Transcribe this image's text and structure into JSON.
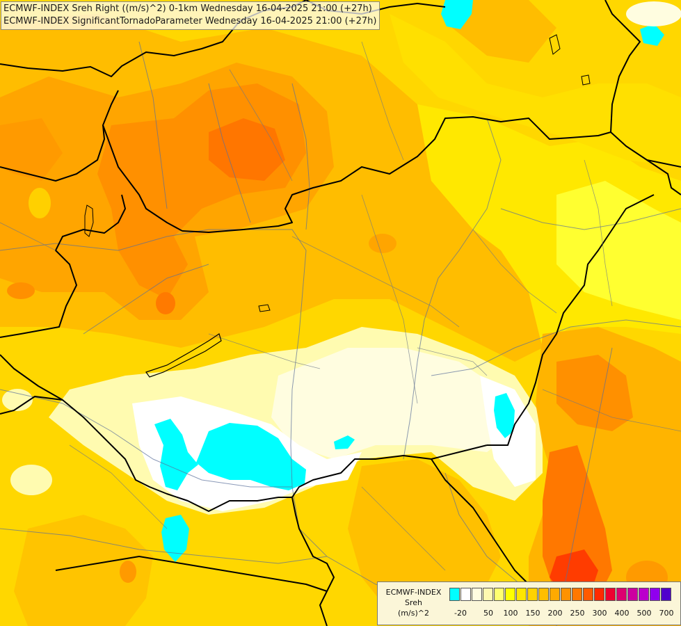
{
  "title_lines": [
    "ECMWF-INDEX Sreh Right ((m/s)^2) 0-1km Wednesday 16-04-2025 21:00 (+27h)",
    "ECMWF-INDEX SignificantTornadoParameter Wednesday 16-04-2025 21:00 (+27h)"
  ],
  "legend": {
    "title": "ECMWF-INDEX",
    "subtitle": "Sreh",
    "unit": "(m/s)^2",
    "colors": [
      "#00ffff",
      "#ffffff",
      "#fffde0",
      "#fff9b0",
      "#ffff70",
      "#ffff00",
      "#ffe600",
      "#ffd200",
      "#ffbe00",
      "#ffaa00",
      "#ff9200",
      "#ff7800",
      "#ff5a00",
      "#ff2a00",
      "#ee0030",
      "#dd0070",
      "#cc00a0",
      "#bb00cc",
      "#9000ee",
      "#5000cc",
      "#1a0090",
      "#000060"
    ],
    "ticks": [
      {
        "label": "-20",
        "pos": 0.5
      },
      {
        "label": "50",
        "pos": 3
      },
      {
        "label": "100",
        "pos": 5
      },
      {
        "label": "150",
        "pos": 7
      },
      {
        "label": "200",
        "pos": 9
      },
      {
        "label": "250",
        "pos": 11
      },
      {
        "label": "300",
        "pos": 13
      },
      {
        "label": "400",
        "pos": 15
      },
      {
        "label": "500",
        "pos": 17
      },
      {
        "label": "700",
        "pos": 19
      }
    ]
  }
}
